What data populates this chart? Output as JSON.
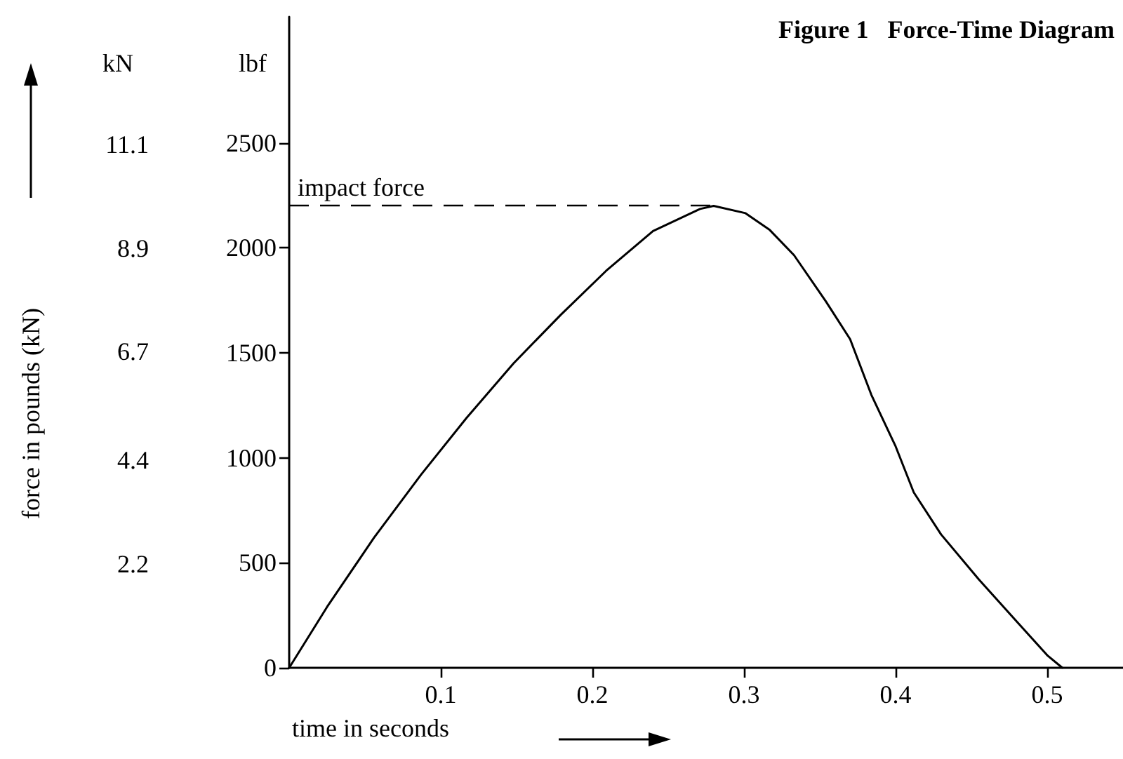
{
  "chart_data": {
    "type": "line",
    "title": "Figure 1   Force-Time Diagram",
    "xlabel": "time in seconds",
    "y2label": "force in pounds (kN)",
    "annotations": [
      "kN",
      "lbf",
      {
        "text": "impact force",
        "x": 0.28,
        "y": 2200
      }
    ],
    "series": [
      {
        "color": "#000000",
        "x": [
          0,
          0.025,
          0.056,
          0.087,
          0.117,
          0.148,
          0.179,
          0.209,
          0.24,
          0.271,
          0.28,
          0.301,
          0.317,
          0.333,
          0.354,
          0.37,
          0.384,
          0.4,
          0.412,
          0.43,
          0.455,
          0.48,
          0.5,
          0.51
        ],
        "values": [
          0,
          290,
          620,
          920,
          1190,
          1450,
          1680,
          1890,
          2080,
          2185,
          2200,
          2165,
          2085,
          1965,
          1745,
          1565,
          1300,
          1055,
          835,
          635,
          420,
          220,
          60,
          0
        ]
      }
    ],
    "xlim": [
      0,
      0.55
    ],
    "xticks": [
      0.1,
      0.2,
      0.3,
      0.4,
      0.5
    ],
    "ylim": [
      0,
      3100
    ],
    "yticks": [
      0,
      500,
      1000,
      1500,
      2000,
      2500
    ],
    "y2lim": [
      0,
      13.8
    ],
    "y2ticks": [
      2.2,
      4.4,
      6.7,
      8.9,
      11.1
    ],
    "grid": false,
    "marker": "none",
    "line_style": "solid"
  }
}
